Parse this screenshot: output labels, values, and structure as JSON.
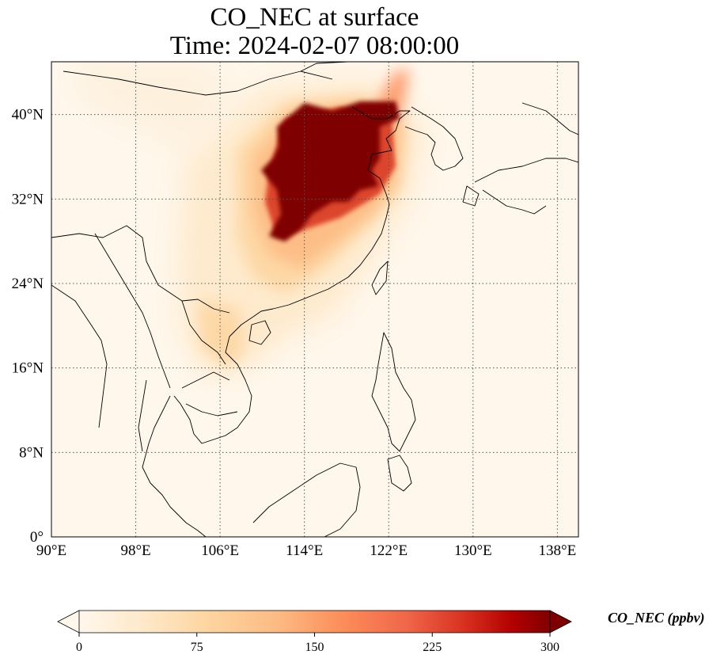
{
  "title": "CO_NEC at surface",
  "subtitle": "Time: 2024-02-07 08:00:00",
  "map": {
    "lon_range": [
      90,
      140
    ],
    "lat_range": [
      0,
      45
    ],
    "lon_ticks": [
      {
        "value": 90,
        "label": "90°E"
      },
      {
        "value": 98,
        "label": "98°E"
      },
      {
        "value": 106,
        "label": "106°E"
      },
      {
        "value": 114,
        "label": "114°E"
      },
      {
        "value": 122,
        "label": "122°E"
      },
      {
        "value": 130,
        "label": "130°E"
      },
      {
        "value": 138,
        "label": "138°E"
      }
    ],
    "lat_ticks": [
      {
        "value": 0,
        "label": "0°"
      },
      {
        "value": 8,
        "label": "8°N"
      },
      {
        "value": 16,
        "label": "16°N"
      },
      {
        "value": 24,
        "label": "24°N"
      },
      {
        "value": 32,
        "label": "32°N"
      },
      {
        "value": 40,
        "label": "40°N"
      }
    ],
    "gridlines": "dotted"
  },
  "colorbar": {
    "label": "CO_NEC (ppbv)",
    "min": 0,
    "max": 300,
    "extend": "both",
    "ticks": [
      {
        "value": 0,
        "label": "0"
      },
      {
        "value": 75,
        "label": "75"
      },
      {
        "value": 150,
        "label": "150"
      },
      {
        "value": 225,
        "label": "225"
      },
      {
        "value": 300,
        "label": "300"
      }
    ],
    "colormap": "OrRd"
  },
  "colors": {
    "c0": "#fff7ec",
    "c1": "#fee8c8",
    "c2": "#fdd49e",
    "c3": "#fdbb84",
    "c4": "#fc8d59",
    "c5": "#ef6548",
    "c6": "#d7301f",
    "c7": "#b30000",
    "c8": "#7f0000"
  }
}
